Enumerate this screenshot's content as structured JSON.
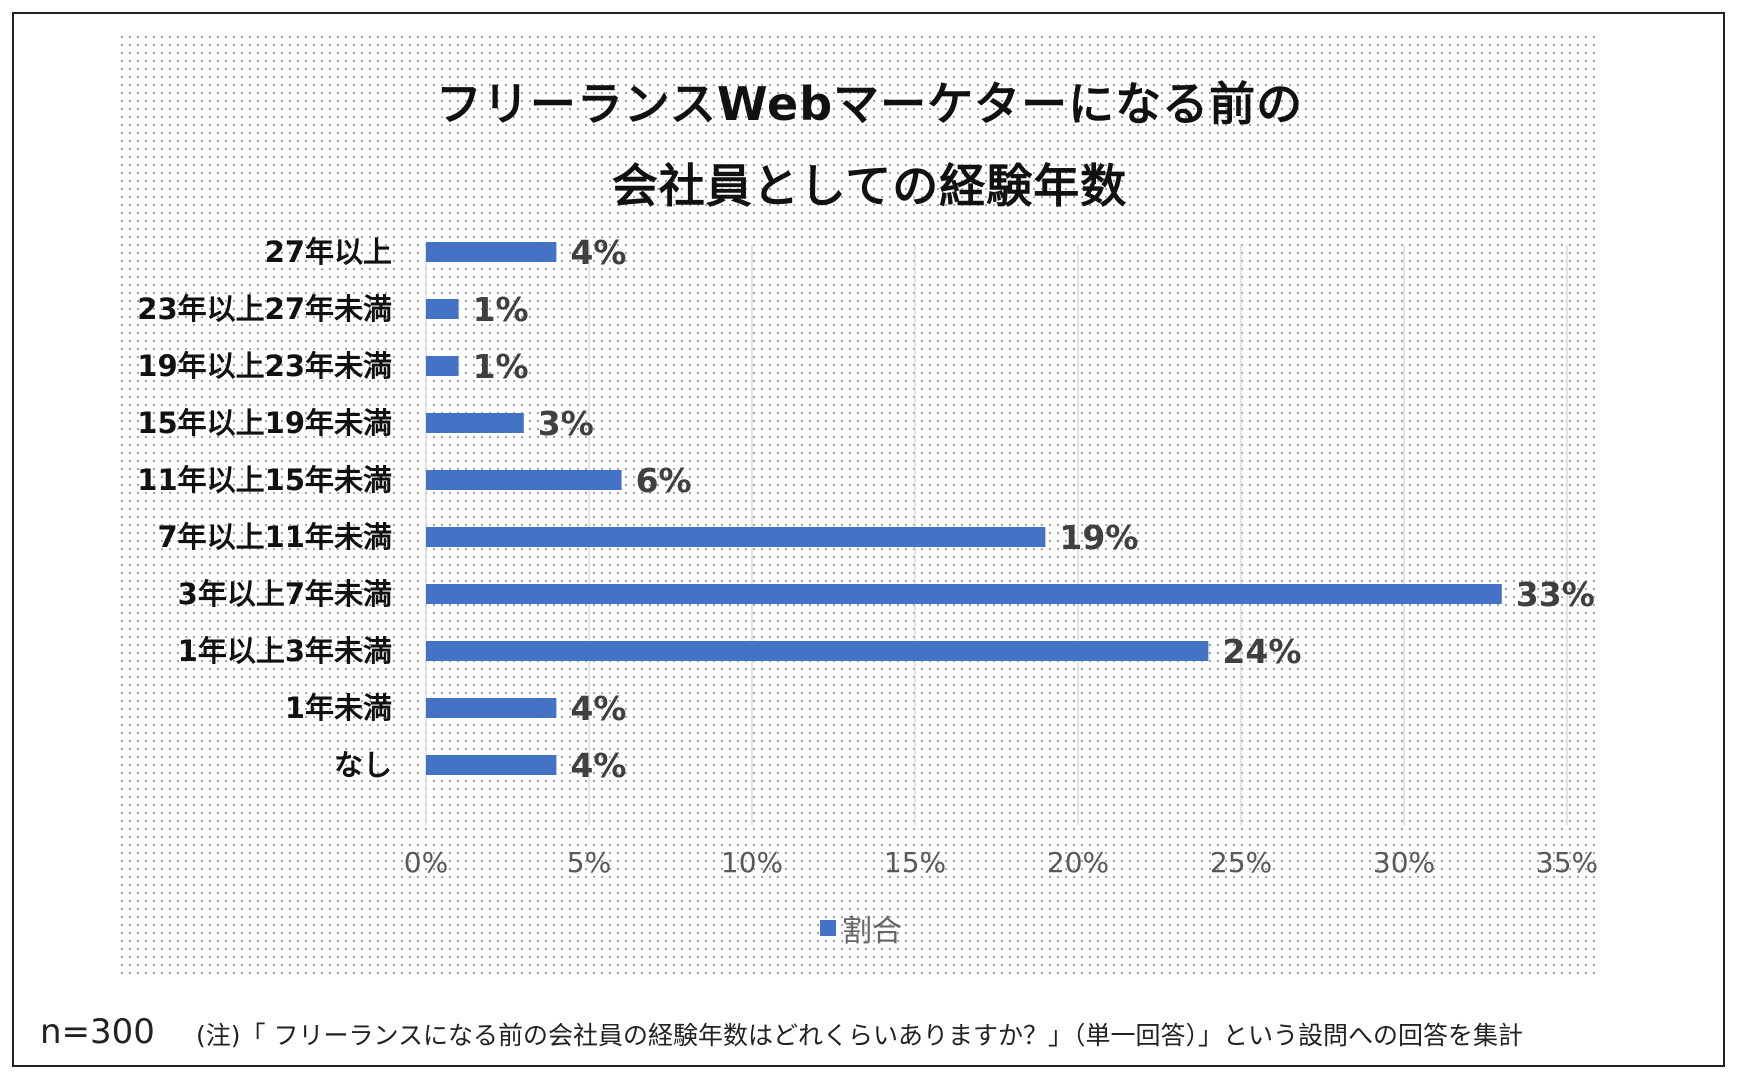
{
  "title": {
    "line1": "フリーランスWebマーケターになる前の",
    "line2": "会社員としての経験年数"
  },
  "chart_data": {
    "type": "bar",
    "orientation": "horizontal",
    "categories": [
      "27年以上",
      "23年以上27年未満",
      "19年以上23年未満",
      "15年以上19年未満",
      "11年以上15年未満",
      "7年以上11年未満",
      "3年以上7年未満",
      "1年以上3年未満",
      "1年未満",
      "なし"
    ],
    "series": [
      {
        "name": "割合",
        "values": [
          4,
          1,
          1,
          3,
          6,
          19,
          33,
          24,
          4,
          4
        ]
      }
    ],
    "data_labels": [
      "4%",
      "1%",
      "1%",
      "3%",
      "6%",
      "19%",
      "33%",
      "24%",
      "4%",
      "4%"
    ],
    "xlim": [
      0,
      35
    ],
    "xticks": [
      0,
      5,
      10,
      15,
      20,
      25,
      30,
      35
    ],
    "xtick_labels": [
      "0%",
      "5%",
      "10%",
      "15%",
      "20%",
      "25%",
      "30%",
      "35%"
    ],
    "grid": "vertical",
    "legend": "bottom-center"
  },
  "colors": {
    "bar": "#4472c4",
    "grid": "#d9d9d9",
    "tick_text": "#595959",
    "category_text": "#111111",
    "data_label": "#404040"
  },
  "footnote": {
    "n": "n=300",
    "text": "(注)「 フリーランスになる前の会社員の経験年数はどれくらいありますか？」（単一回答）」という設問への回答を集計"
  }
}
